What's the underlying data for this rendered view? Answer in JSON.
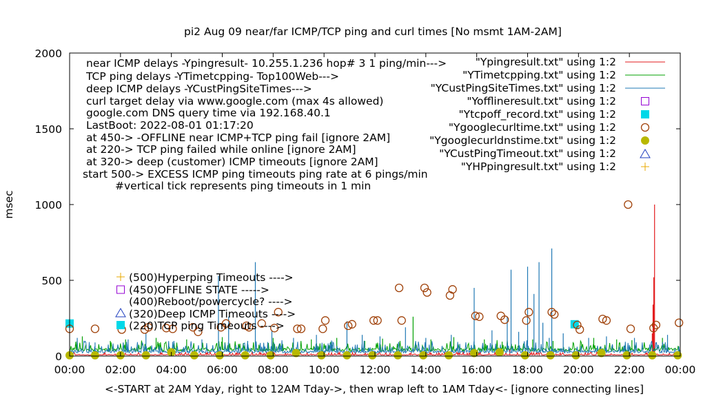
{
  "chart_data": {
    "type": "line",
    "title": "pi2 Aug 09  near/far ICMP/TCP ping and curl times [No msmt 1AM-2AM]",
    "xlabel": "<-START at 2AM Yday, right to 12AM Tday->, then wrap left to 1AM Tday<- [ignore connecting lines]",
    "ylabel": "msec",
    "xlim": [
      0,
      24
    ],
    "ylim": [
      0,
      2000
    ],
    "grid": false,
    "legend_position": "top-right",
    "x_ticks": [
      {
        "v": 0,
        "label": "00:00"
      },
      {
        "v": 2,
        "label": "02:00"
      },
      {
        "v": 4,
        "label": "04:00"
      },
      {
        "v": 6,
        "label": "06:00"
      },
      {
        "v": 8,
        "label": "08:00"
      },
      {
        "v": 10,
        "label": "10:00"
      },
      {
        "v": 12,
        "label": "12:00"
      },
      {
        "v": 14,
        "label": "14:00"
      },
      {
        "v": 16,
        "label": "16:00"
      },
      {
        "v": 18,
        "label": "18:00"
      },
      {
        "v": 20,
        "label": "20:00"
      },
      {
        "v": 22,
        "label": "22:00"
      },
      {
        "v": 24,
        "label": "00:00"
      }
    ],
    "y_ticks": [
      {
        "v": 0,
        "label": "0"
      },
      {
        "v": 500,
        "label": "500"
      },
      {
        "v": 1000,
        "label": "1000"
      },
      {
        "v": 1500,
        "label": "1500"
      },
      {
        "v": 2000,
        "label": "2000"
      }
    ],
    "info_lines": [
      "near ICMP delays -Ypingresult- 10.255.1.236 hop# 3 1 ping/min--->",
      "TCP ping delays -YTimetcpping- Top100Web--->",
      "deep ICMP delays -YCustPingSiteTimes--->",
      "curl target delay via www.google.com (max 4s allowed)",
      "google.com DNS query time via 192.168.40.1",
      "LastBoot: 2022-08-01 01:17:20",
      "at 450-> -OFFLINE near ICMP+TCP ping fail [ignore 2AM]",
      "at 220-> TCP ping failed while online [ignore 2AM]",
      "at 320-> deep (customer) ICMP timeouts [ignore 2AM]",
      "start 500-> EXCESS ICMP ping timeouts ping rate at 6 pings/min",
      "#vertical tick represents ping timeouts in 1 min"
    ],
    "level_labels": [
      "(500)Hyperping Timeouts ---->",
      "(450)OFFLINE STATE ----->",
      "(400)Reboot/powercycle? ---->",
      "(320)Deep ICMP Timeouts ---->",
      "(220)TCP ping Timeouts ---->"
    ],
    "series": [
      {
        "name": "\"Ypingresult.txt\" using 1:2",
        "style": "line",
        "color": "#e31a1c",
        "baseline": 8,
        "spikes": [
          [
            22.99,
            1000
          ],
          [
            22.96,
            520
          ],
          [
            22.93,
            340
          ],
          [
            22.9,
            150
          ],
          [
            20.0,
            40
          ],
          [
            8.0,
            30
          ],
          [
            14.5,
            35
          ],
          [
            17.3,
            45
          ]
        ]
      },
      {
        "name": "\"YTimetcpping.txt\" using 1:2",
        "style": "line",
        "color": "#00a000",
        "baseline": 42,
        "spikes": [
          [
            0.5,
            130
          ],
          [
            1.6,
            100
          ],
          [
            2.2,
            110
          ],
          [
            3.4,
            120
          ],
          [
            4.6,
            110
          ],
          [
            6.0,
            125
          ],
          [
            7.0,
            95
          ],
          [
            8.0,
            120
          ],
          [
            9.5,
            110
          ],
          [
            10.5,
            120
          ],
          [
            11.6,
            100
          ],
          [
            12.3,
            115
          ],
          [
            13.5,
            260
          ],
          [
            14.2,
            110
          ],
          [
            15.1,
            125
          ],
          [
            16.3,
            110
          ],
          [
            17.0,
            95
          ],
          [
            18.2,
            110
          ],
          [
            19.0,
            100
          ],
          [
            20.6,
            120
          ],
          [
            21.5,
            110
          ],
          [
            22.1,
            105
          ],
          [
            23.3,
            120
          ]
        ]
      },
      {
        "name": "\"YCustPingSiteTimes.txt\" using 1:2",
        "style": "line",
        "color": "#1f78b4",
        "baseline": 28,
        "spikes": [
          [
            0.3,
            120
          ],
          [
            1.0,
            90
          ],
          [
            2.3,
            110
          ],
          [
            3.0,
            150
          ],
          [
            4.1,
            100
          ],
          [
            5.2,
            110
          ],
          [
            5.85,
            530
          ],
          [
            6.25,
            260
          ],
          [
            7.0,
            100
          ],
          [
            7.3,
            620
          ],
          [
            7.95,
            170
          ],
          [
            8.8,
            120
          ],
          [
            9.7,
            140
          ],
          [
            10.9,
            230
          ],
          [
            11.5,
            140
          ],
          [
            12.2,
            130
          ],
          [
            13.2,
            190
          ],
          [
            14.0,
            120
          ],
          [
            15.0,
            140
          ],
          [
            15.9,
            450
          ],
          [
            16.6,
            170
          ],
          [
            17.2,
            260
          ],
          [
            17.35,
            570
          ],
          [
            17.65,
            160
          ],
          [
            18.0,
            590
          ],
          [
            18.25,
            410
          ],
          [
            18.45,
            620
          ],
          [
            18.6,
            220
          ],
          [
            18.85,
            120
          ],
          [
            18.95,
            710
          ],
          [
            19.4,
            150
          ],
          [
            20.4,
            120
          ],
          [
            21.1,
            130
          ],
          [
            22.2,
            120
          ],
          [
            23.5,
            140
          ]
        ]
      },
      {
        "name": "\"Yofflineresult.txt\" using 1:2",
        "style": "point",
        "marker": "open-square",
        "color": "#9400d3",
        "points": []
      },
      {
        "name": "\"Ytcpoff_record.txt\" using 1:2",
        "style": "point",
        "marker": "filled-square",
        "color": "#00d8e8",
        "points": [
          [
            0.0,
            215
          ],
          [
            19.85,
            210
          ]
        ]
      },
      {
        "name": "\"Ygooglecurltime.txt\" using 1:2",
        "style": "point",
        "marker": "open-circle",
        "color": "#a0420a",
        "points": [
          [
            0.0,
            180
          ],
          [
            1.0,
            180
          ],
          [
            2.05,
            175
          ],
          [
            2.95,
            175
          ],
          [
            3.1,
            190
          ],
          [
            3.8,
            185
          ],
          [
            4.05,
            180
          ],
          [
            4.85,
            190
          ],
          [
            5.05,
            160
          ],
          [
            5.95,
            190
          ],
          [
            6.15,
            215
          ],
          [
            6.95,
            200
          ],
          [
            7.05,
            190
          ],
          [
            7.55,
            215
          ],
          [
            8.05,
            185
          ],
          [
            8.2,
            290
          ],
          [
            8.95,
            180
          ],
          [
            9.1,
            180
          ],
          [
            9.95,
            180
          ],
          [
            10.05,
            235
          ],
          [
            10.95,
            200
          ],
          [
            11.1,
            210
          ],
          [
            11.95,
            235
          ],
          [
            12.1,
            235
          ],
          [
            12.95,
            450
          ],
          [
            13.05,
            235
          ],
          [
            13.95,
            450
          ],
          [
            14.05,
            420
          ],
          [
            14.95,
            400
          ],
          [
            15.05,
            440
          ],
          [
            15.95,
            265
          ],
          [
            16.1,
            260
          ],
          [
            16.95,
            265
          ],
          [
            17.1,
            240
          ],
          [
            17.95,
            235
          ],
          [
            18.05,
            290
          ],
          [
            18.95,
            290
          ],
          [
            19.05,
            275
          ],
          [
            19.95,
            205
          ],
          [
            20.05,
            175
          ],
          [
            20.95,
            245
          ],
          [
            21.1,
            235
          ],
          [
            21.95,
            1000
          ],
          [
            22.05,
            180
          ],
          [
            22.95,
            185
          ],
          [
            23.05,
            205
          ],
          [
            23.95,
            220
          ]
        ]
      },
      {
        "name": "\"Ygooglecurldnstime.txt\" using 1:2",
        "style": "point",
        "marker": "filled-circle",
        "color": "#b8b800",
        "points": [
          [
            0.0,
            5
          ],
          [
            1.0,
            5
          ],
          [
            2.0,
            5
          ],
          [
            3.0,
            5
          ],
          [
            4.0,
            25
          ],
          [
            4.9,
            5
          ],
          [
            5.9,
            5
          ],
          [
            6.9,
            5
          ],
          [
            7.9,
            5
          ],
          [
            8.9,
            20
          ],
          [
            9.9,
            5
          ],
          [
            10.9,
            5
          ],
          [
            11.9,
            5
          ],
          [
            12.9,
            5
          ],
          [
            13.9,
            5
          ],
          [
            14.9,
            5
          ],
          [
            15.9,
            20
          ],
          [
            16.9,
            25
          ],
          [
            17.9,
            5
          ],
          [
            18.9,
            5
          ],
          [
            19.9,
            5
          ],
          [
            20.9,
            20
          ],
          [
            21.9,
            5
          ],
          [
            22.9,
            5
          ],
          [
            23.9,
            5
          ]
        ]
      },
      {
        "name": "\"YCustPingTimeout.txt\" using 1:2",
        "style": "point",
        "marker": "open-triangle",
        "color": "#1f3fbf",
        "points": []
      },
      {
        "name": "\"YHPpingresult.txt\" using 1:2",
        "style": "point",
        "marker": "plus",
        "color": "#e8a800",
        "points": []
      }
    ]
  }
}
